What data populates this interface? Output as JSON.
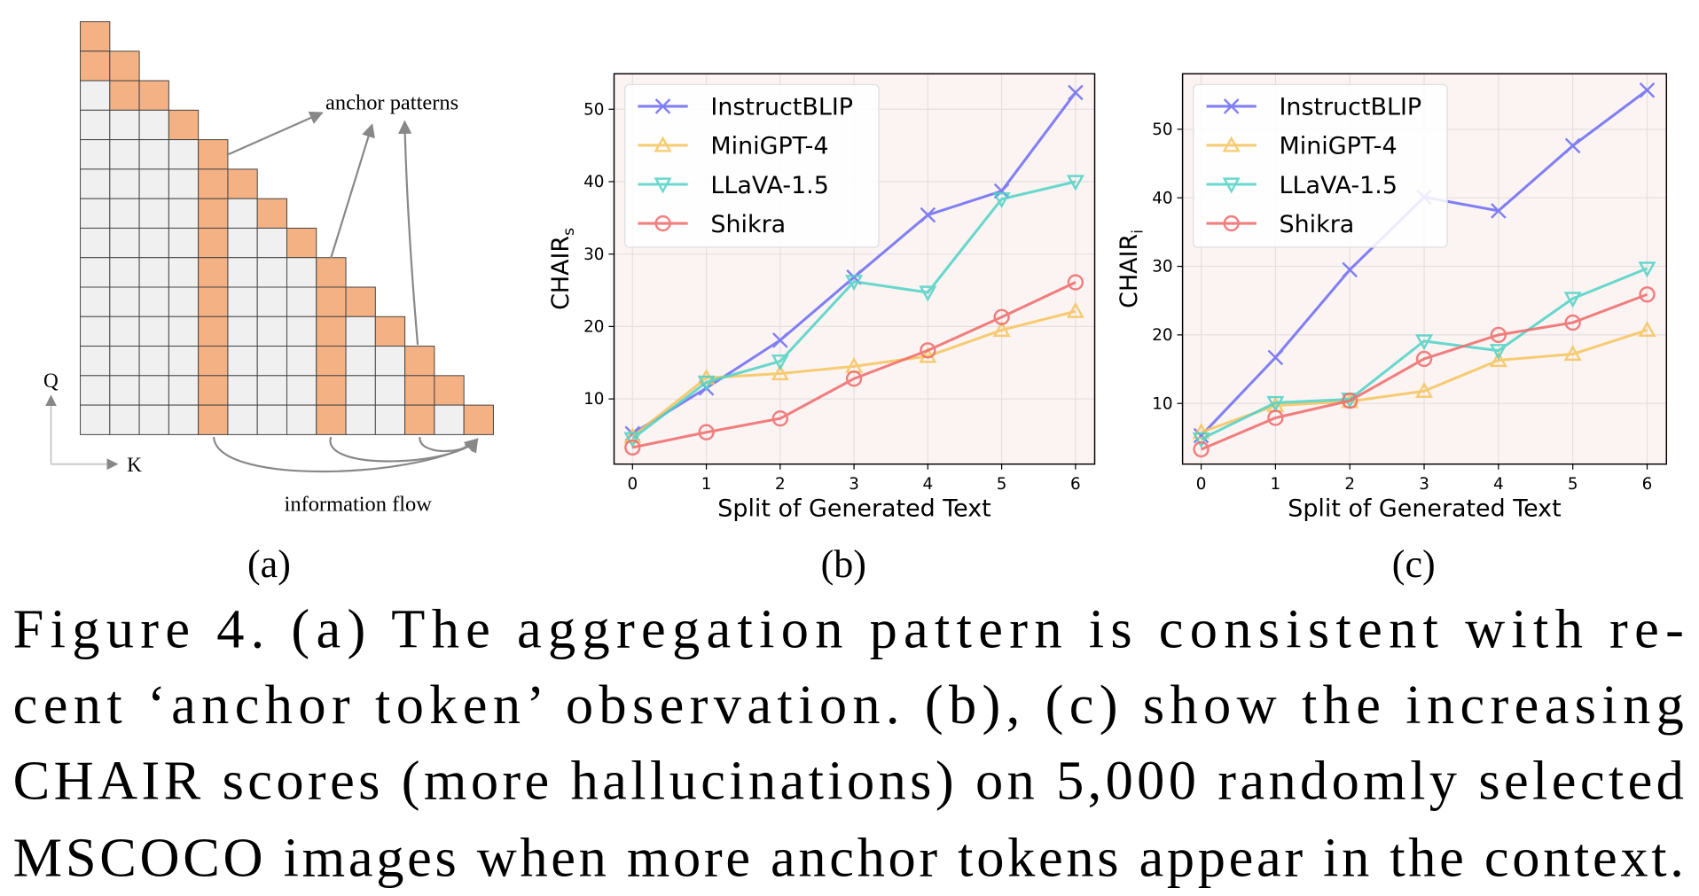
{
  "diagram": {
    "anchor_label": "anchor patterns",
    "flow_label": "information flow",
    "q_label": "Q",
    "k_label": "K",
    "panel_label": "(a)"
  },
  "chart_data": [
    {
      "type": "line",
      "panel_label": "(b)",
      "xlabel": "Split of Generated Text",
      "ylabel": "CHAIR",
      "ylabel_subscript": "s",
      "x": [
        0,
        1,
        2,
        3,
        4,
        5,
        6
      ],
      "xlim": [
        -0.25,
        6.26
      ],
      "ylim": [
        1.0,
        54.9
      ],
      "xticks": [
        0,
        1,
        2,
        3,
        4,
        5,
        6
      ],
      "yticks": [
        10,
        20,
        30,
        40,
        50
      ],
      "grid": true,
      "legend": "upper left",
      "series": [
        {
          "name": "InstructBLIP",
          "color": "#6b6bf5",
          "marker": "x",
          "values": [
            5.2,
            11.5,
            18.1,
            26.8,
            35.4,
            38.7,
            52.3
          ]
        },
        {
          "name": "MiniGPT-4",
          "color": "#f7c45c",
          "marker": "triangle-up",
          "values": [
            4.8,
            12.9,
            13.5,
            14.5,
            15.9,
            19.5,
            22.1
          ]
        },
        {
          "name": "LLaVA-1.5",
          "color": "#4fd2c6",
          "marker": "triangle-down",
          "values": [
            4.5,
            12.3,
            15.2,
            26.2,
            24.7,
            37.6,
            40.0
          ]
        },
        {
          "name": "Shikra",
          "color": "#f06a6a",
          "marker": "circle",
          "values": [
            3.3,
            5.4,
            7.3,
            12.8,
            16.7,
            21.3,
            26.1
          ]
        }
      ]
    },
    {
      "type": "line",
      "panel_label": "(c)",
      "xlabel": "Split of Generated Text",
      "ylabel": "CHAIR",
      "ylabel_subscript": "i",
      "x": [
        0,
        1,
        2,
        3,
        4,
        5,
        6
      ],
      "xlim": [
        -0.25,
        6.26
      ],
      "ylim": [
        1.15,
        58.1
      ],
      "xticks": [
        0,
        1,
        2,
        3,
        4,
        5,
        6
      ],
      "yticks": [
        10,
        20,
        30,
        40,
        50
      ],
      "grid": true,
      "legend": "upper left",
      "series": [
        {
          "name": "InstructBLIP",
          "color": "#6b6bf5",
          "marker": "x",
          "values": [
            5.3,
            16.7,
            29.5,
            40.1,
            38.1,
            47.6,
            55.7
          ]
        },
        {
          "name": "MiniGPT-4",
          "color": "#f7c45c",
          "marker": "triangle-up",
          "values": [
            5.8,
            9.7,
            10.3,
            11.8,
            16.3,
            17.2,
            20.7
          ]
        },
        {
          "name": "LLaVA-1.5",
          "color": "#4fd2c6",
          "marker": "triangle-down",
          "values": [
            4.8,
            10.1,
            10.6,
            19.1,
            17.7,
            25.3,
            29.7
          ]
        },
        {
          "name": "Shikra",
          "color": "#f06a6a",
          "marker": "circle",
          "values": [
            3.3,
            7.9,
            10.4,
            16.5,
            20.0,
            21.8,
            25.9
          ]
        }
      ]
    }
  ],
  "caption": [
    "Figure 4.  (a) The aggregation pattern is consistent with re-",
    "cent ‘anchor token’ observation.  (b), (c) show the increasing",
    "CHAIR scores (more hallucinations) on 5,000 randomly selected",
    "MSCOCO images when more anchor tokens appear in the context."
  ]
}
